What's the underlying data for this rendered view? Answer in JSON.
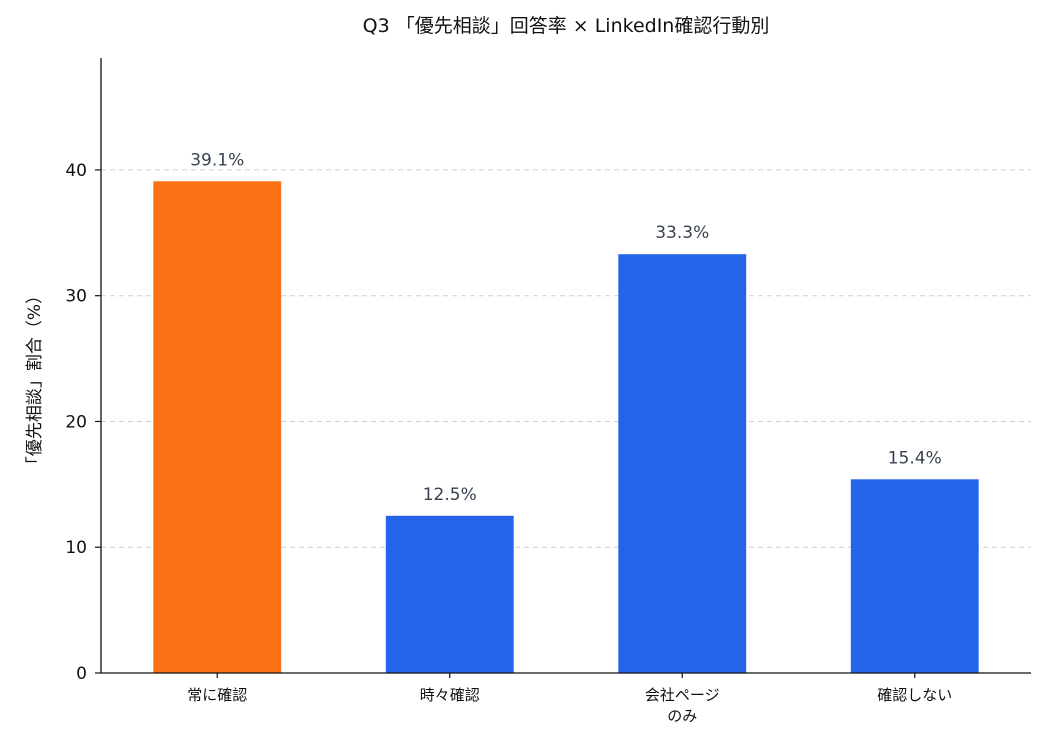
{
  "chart_data": {
    "type": "bar",
    "title": "Q3 「優先相談」回答率 × LinkedIn確認行動別",
    "xlabel": "",
    "ylabel": "「優先相談」割合（%）",
    "categories": [
      [
        "常に確認"
      ],
      [
        "時々確認"
      ],
      [
        "会社ページ",
        "のみ"
      ],
      [
        "確認しない"
      ]
    ],
    "values": [
      39.1,
      12.5,
      33.3,
      15.4
    ],
    "data_labels": [
      "39.1%",
      "12.5%",
      "33.3%",
      "15.4%"
    ],
    "colors": [
      "#f97316",
      "#2563eb",
      "#2563eb",
      "#2563eb"
    ],
    "ylim": [
      0,
      48.9
    ],
    "yticks": [
      0,
      10,
      20,
      30,
      40
    ],
    "grid": true,
    "legend": "none"
  }
}
